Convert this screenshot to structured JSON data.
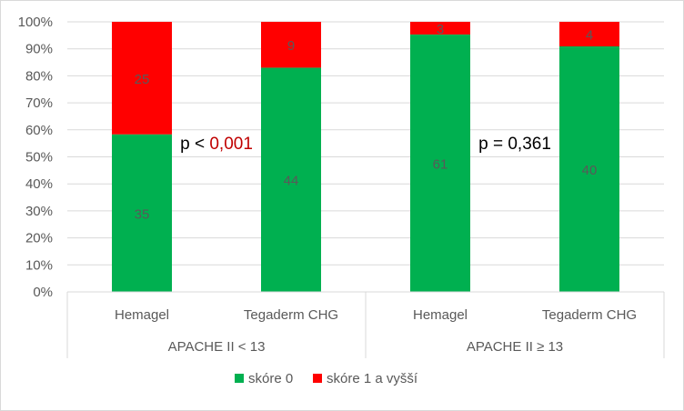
{
  "chart_data": {
    "type": "bar",
    "stacked": "percent",
    "groups": [
      {
        "label": "APACHE II < 13",
        "categories": [
          "Hemagel",
          "Tegaderm CHG"
        ]
      },
      {
        "label": "APACHE II ≥ 13",
        "categories": [
          "Hemagel",
          "Tegaderm CHG"
        ]
      }
    ],
    "categories": [
      "Hemagel",
      "Tegaderm CHG",
      "Hemagel",
      "Tegaderm CHG"
    ],
    "series": [
      {
        "name": "skóre 0",
        "color": "#00b050",
        "values": [
          35,
          44,
          61,
          40
        ]
      },
      {
        "name": "skóre 1 a vyšší",
        "color": "#ff0000",
        "values": [
          25,
          9,
          3,
          4
        ]
      }
    ],
    "yticks": [
      "0%",
      "10%",
      "20%",
      "30%",
      "40%",
      "50%",
      "60%",
      "70%",
      "80%",
      "90%",
      "100%"
    ],
    "ylim": [
      0,
      100
    ],
    "annotations": [
      {
        "prefix": "p < ",
        "value": "0,001",
        "value_color": "#c00000"
      },
      {
        "prefix": "p = ",
        "value": "0,361",
        "value_color": "#000000"
      }
    ],
    "grid": true,
    "legend_position": "bottom",
    "data_label_color": "#595959",
    "axis_text_color": "#595959"
  }
}
